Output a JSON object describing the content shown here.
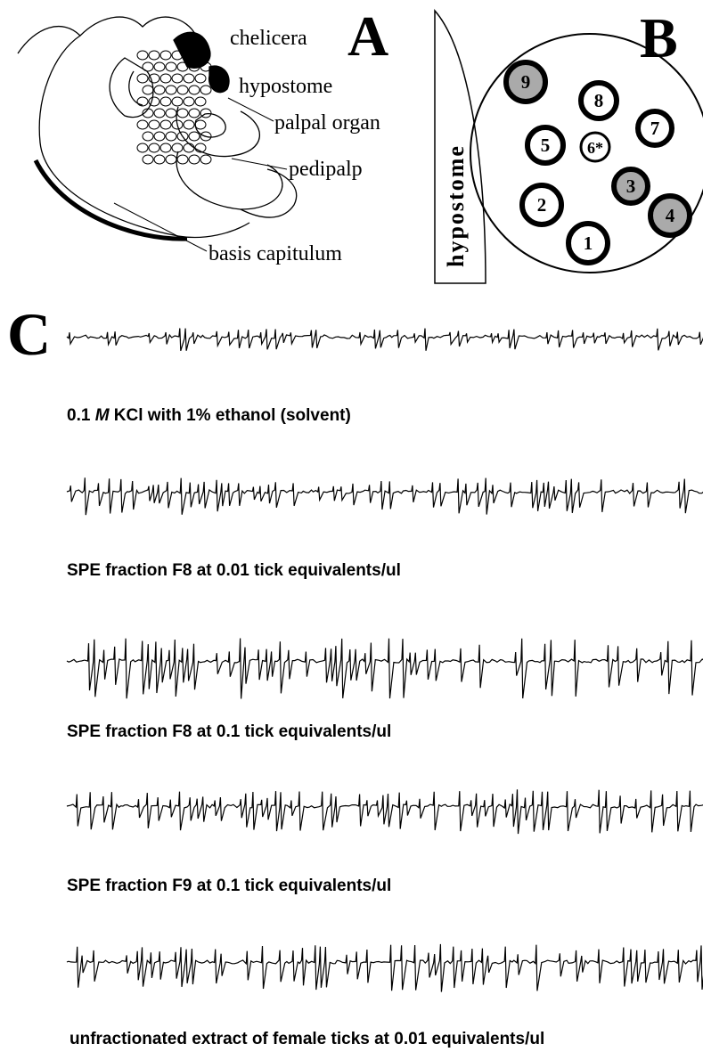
{
  "panel_a": {
    "label": "A",
    "parts": [
      "chelicera",
      "hypostome",
      "palpal organ",
      "pedipalp",
      "basis capitulum"
    ]
  },
  "panel_b": {
    "label": "B",
    "hypostome": "hypostome",
    "sensilla": [
      {
        "label": "9",
        "shaded": true
      },
      {
        "label": "8",
        "shaded": false
      },
      {
        "label": "7",
        "shaded": false
      },
      {
        "label": "5",
        "shaded": false
      },
      {
        "label": "6*",
        "shaded": false
      },
      {
        "label": "3",
        "shaded": true
      },
      {
        "label": "2",
        "shaded": false
      },
      {
        "label": "4",
        "shaded": true
      },
      {
        "label": "1",
        "shaded": false
      }
    ]
  },
  "panel_c": {
    "label": "C",
    "recordings": [
      {
        "caption": [
          "0.1 ",
          "M",
          " KCl with 1% ethanol (solvent)"
        ]
      },
      {
        "caption": [
          "SPE fraction F8 at 0.01 tick equivalents/ul"
        ]
      },
      {
        "caption": [
          "SPE fraction F8 at 0.1 tick equivalents/ul"
        ]
      },
      {
        "caption": [
          "SPE fraction F9 at 0.1 tick equivalents/ul"
        ]
      },
      {
        "caption": [
          "unfractionated extract of female ticks at 0.01 equivalents/ul"
        ]
      }
    ]
  }
}
